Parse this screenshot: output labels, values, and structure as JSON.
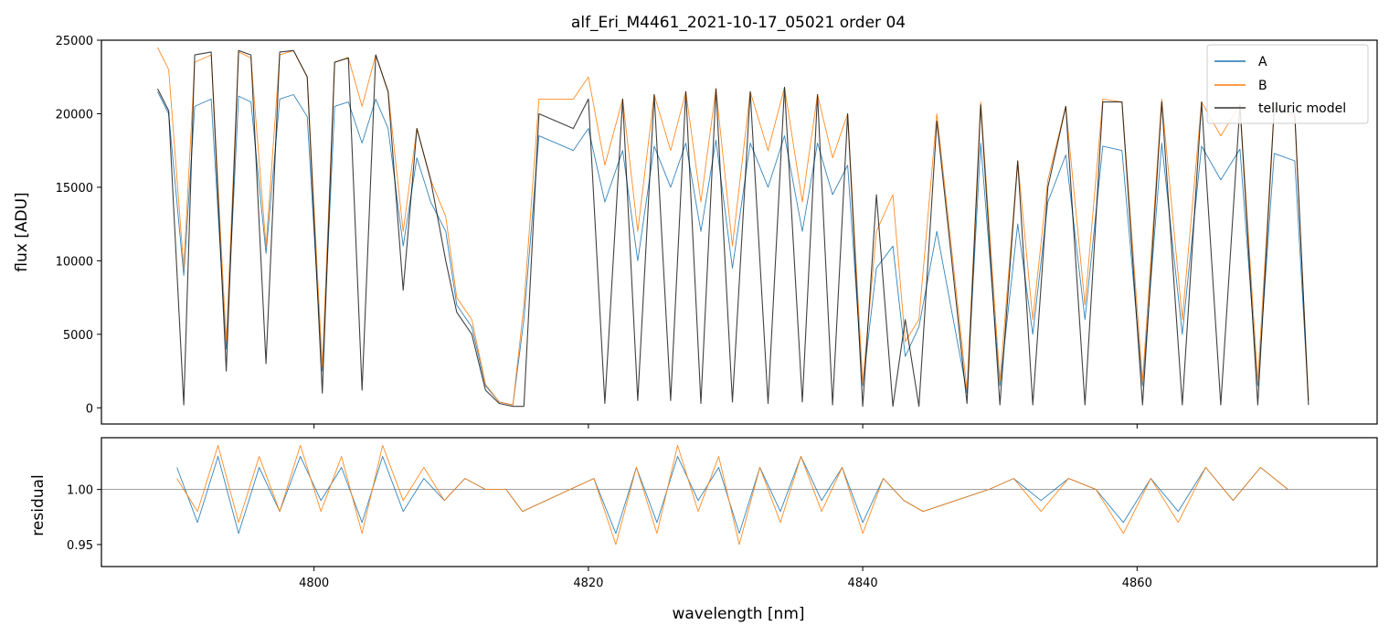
{
  "chart_data": [
    {
      "type": "line",
      "title": "alf_Eri_M4461_2021-10-17_05021  order 04",
      "xlabel": "",
      "ylabel": "flux [ADU]",
      "xlim": [
        4784.5,
        4877.5
      ],
      "ylim": [
        -1100,
        25000
      ],
      "yticks": [
        0,
        5000,
        10000,
        15000,
        20000,
        25000
      ],
      "legend": "top-right",
      "grid": false,
      "colors": {
        "A": "#1f77b4",
        "B": "#ff7f0e",
        "telluric model": "#000000"
      },
      "series": [
        {
          "name": "A",
          "x": [
            4788.6,
            4789.4,
            4790.5,
            4791.3,
            4792.5,
            4793.6,
            4794.5,
            4795.4,
            4796.5,
            4797.5,
            4798.5,
            4799.5,
            4800.6,
            4801.5,
            4802.5,
            4803.5,
            4804.5,
            4805.4,
            4806.5,
            4807.5,
            4808.5,
            4809.6,
            4810.4,
            4811.5,
            4812.5,
            4813.5,
            4814.5,
            4815.3,
            4816.4,
            4818.9,
            4820.0,
            4821.2,
            4822.5,
            4823.6,
            4824.8,
            4826.0,
            4827.1,
            4828.2,
            4829.3,
            4830.5,
            4831.8,
            4833.1,
            4834.3,
            4835.6,
            4836.7,
            4837.8,
            4838.9,
            4840.0,
            4841.0,
            4842.2,
            4843.1,
            4844.1,
            4845.4,
            4847.6,
            4848.6,
            4850.0,
            4851.3,
            4852.4,
            4853.5,
            4854.8,
            4856.2,
            4857.5,
            4858.9,
            4860.4,
            4861.8,
            4863.3,
            4864.7,
            4866.1,
            4867.5,
            4868.8,
            4870.0,
            4871.5,
            4872.5
          ],
          "y": [
            21500,
            20000,
            9000,
            20500,
            21000,
            4000,
            21200,
            20800,
            10500,
            21000,
            21300,
            19800,
            2500,
            20500,
            20800,
            18000,
            21000,
            19000,
            11000,
            17000,
            14000,
            12000,
            7000,
            5500,
            1500,
            400,
            200,
            6000,
            18500,
            17500,
            19000,
            14000,
            17500,
            10000,
            17800,
            15000,
            18000,
            12000,
            18200,
            9500,
            18000,
            15000,
            18500,
            12000,
            18000,
            14500,
            16500,
            1500,
            9500,
            11000,
            3500,
            5500,
            12000,
            1000,
            18000,
            1500,
            12500,
            5000,
            14000,
            17200,
            6000,
            17800,
            17500,
            1500,
            18000,
            5000,
            17800,
            15500,
            17600,
            1500,
            17300,
            16800,
            500
          ]
        },
        {
          "name": "B",
          "x": [
            4788.6,
            4789.4,
            4790.5,
            4791.3,
            4792.5,
            4793.6,
            4794.5,
            4795.4,
            4796.5,
            4797.5,
            4798.5,
            4799.5,
            4800.6,
            4801.5,
            4802.5,
            4803.5,
            4804.5,
            4805.4,
            4806.5,
            4807.5,
            4808.5,
            4809.6,
            4810.4,
            4811.5,
            4812.5,
            4813.5,
            4814.5,
            4815.3,
            4816.4,
            4818.9,
            4820.0,
            4821.2,
            4822.5,
            4823.6,
            4824.8,
            4826.0,
            4827.1,
            4828.2,
            4829.3,
            4830.5,
            4831.8,
            4833.1,
            4834.3,
            4835.6,
            4836.7,
            4837.8,
            4838.9,
            4840.0,
            4841.0,
            4842.2,
            4843.1,
            4844.1,
            4845.4,
            4847.6,
            4848.6,
            4850.0,
            4851.3,
            4852.4,
            4853.5,
            4854.8,
            4856.2,
            4857.5,
            4858.9,
            4860.4,
            4861.8,
            4863.3,
            4864.7,
            4866.1,
            4867.5,
            4868.8,
            4870.0,
            4871.5,
            4872.5
          ],
          "y": [
            24500,
            23000,
            9500,
            23500,
            24000,
            4500,
            24200,
            23800,
            11000,
            24000,
            24300,
            22500,
            2800,
            23500,
            23800,
            20500,
            24000,
            21500,
            12000,
            19000,
            15500,
            13000,
            7500,
            6000,
            1600,
            400,
            200,
            7000,
            21000,
            21000,
            22500,
            16500,
            21000,
            12000,
            21300,
            17500,
            21500,
            14000,
            21700,
            11000,
            21500,
            17500,
            21800,
            14000,
            21300,
            17000,
            20000,
            1700,
            12000,
            14500,
            4500,
            6000,
            20000,
            1200,
            20800,
            1800,
            16800,
            6000,
            15500,
            20500,
            7000,
            21000,
            20800,
            1800,
            21000,
            6000,
            20800,
            18500,
            20600,
            1800,
            20400,
            19800,
            500
          ]
        },
        {
          "name": "telluric model",
          "x": [
            4788.6,
            4789.4,
            4790.5,
            4791.3,
            4792.5,
            4793.6,
            4794.5,
            4795.4,
            4796.5,
            4797.5,
            4798.5,
            4799.5,
            4800.6,
            4801.5,
            4802.5,
            4803.5,
            4804.5,
            4805.4,
            4806.5,
            4807.5,
            4808.5,
            4809.6,
            4810.4,
            4811.5,
            4812.5,
            4813.5,
            4814.5,
            4815.3,
            4816.4,
            4818.9,
            4820.0,
            4821.2,
            4822.5,
            4823.6,
            4824.8,
            4826.0,
            4827.1,
            4828.2,
            4829.3,
            4830.5,
            4831.8,
            4833.1,
            4834.3,
            4835.6,
            4836.7,
            4837.8,
            4838.9,
            4840.0,
            4841.0,
            4842.2,
            4843.1,
            4844.1,
            4845.4,
            4847.6,
            4848.6,
            4850.0,
            4851.3,
            4852.4,
            4853.5,
            4854.8,
            4856.2,
            4857.5,
            4858.9,
            4860.4,
            4861.8,
            4863.3,
            4864.7,
            4866.1,
            4867.5,
            4868.8,
            4870.0,
            4871.5,
            4872.5
          ],
          "y": [
            21700,
            20200,
            200,
            24000,
            24200,
            2500,
            24300,
            24000,
            3000,
            24200,
            24300,
            22500,
            1000,
            23500,
            23800,
            1200,
            24000,
            21500,
            8000,
            19000,
            15500,
            10000,
            6500,
            5000,
            1200,
            300,
            100,
            100,
            20000,
            19000,
            21000,
            300,
            21000,
            500,
            21300,
            500,
            21500,
            300,
            21700,
            400,
            21500,
            300,
            21800,
            400,
            21300,
            200,
            20000,
            100,
            14500,
            100,
            6000,
            100,
            19500,
            300,
            20600,
            200,
            16800,
            200,
            15000,
            20500,
            200,
            20800,
            20800,
            200,
            20800,
            200,
            20800,
            200,
            20600,
            200,
            20400,
            20000,
            200
          ]
        }
      ]
    },
    {
      "type": "line",
      "title": "",
      "xlabel": "wavelength [nm]",
      "ylabel": "residual",
      "xlim": [
        4784.5,
        4877.5
      ],
      "ylim": [
        0.93,
        1.047
      ],
      "xticks": [
        4800,
        4820,
        4840,
        4860
      ],
      "yticks": [
        0.95,
        1.0
      ],
      "reference_line": 1.0,
      "grid": false,
      "series": [
        {
          "name": "A",
          "x": [
            4790.0,
            4791.5,
            4793.0,
            4794.5,
            4796.0,
            4797.5,
            4799.0,
            4800.5,
            4802.0,
            4803.5,
            4805.0,
            4806.5,
            4808.0,
            4809.5,
            4811.0,
            4812.5,
            4814.0,
            4815.2,
            4820.4,
            4822.0,
            4823.5,
            4825.0,
            4826.5,
            4828.0,
            4829.5,
            4831.0,
            4832.5,
            4834.0,
            4835.5,
            4837.0,
            4838.5,
            4840.0,
            4841.5,
            4843.0,
            4844.4,
            4849.2,
            4851.0,
            4853.0,
            4855.0,
            4857.0,
            4859.0,
            4861.0,
            4863.0,
            4865.0,
            4867.0,
            4869.0,
            4871.0
          ],
          "y": [
            1.02,
            0.97,
            1.03,
            0.96,
            1.02,
            0.98,
            1.03,
            0.99,
            1.02,
            0.97,
            1.03,
            0.98,
            1.01,
            0.99,
            1.01,
            1.0,
            1.0,
            0.98,
            1.01,
            0.96,
            1.02,
            0.97,
            1.03,
            0.99,
            1.02,
            0.96,
            1.02,
            0.98,
            1.03,
            0.99,
            1.02,
            0.97,
            1.01,
            0.99,
            0.98,
            1.0,
            1.01,
            0.99,
            1.01,
            1.0,
            0.97,
            1.01,
            0.98,
            1.02,
            0.99,
            1.02,
            1.0
          ]
        },
        {
          "name": "B",
          "x": [
            4790.0,
            4791.5,
            4793.0,
            4794.5,
            4796.0,
            4797.5,
            4799.0,
            4800.5,
            4802.0,
            4803.5,
            4805.0,
            4806.5,
            4808.0,
            4809.5,
            4811.0,
            4812.5,
            4814.0,
            4815.2,
            4820.4,
            4822.0,
            4823.5,
            4825.0,
            4826.5,
            4828.0,
            4829.5,
            4831.0,
            4832.5,
            4834.0,
            4835.5,
            4837.0,
            4838.5,
            4840.0,
            4841.5,
            4843.0,
            4844.4,
            4849.2,
            4851.0,
            4853.0,
            4855.0,
            4857.0,
            4859.0,
            4861.0,
            4863.0,
            4865.0,
            4867.0,
            4869.0,
            4871.0
          ],
          "y": [
            1.01,
            0.98,
            1.04,
            0.97,
            1.03,
            0.98,
            1.04,
            0.98,
            1.03,
            0.96,
            1.04,
            0.99,
            1.02,
            0.99,
            1.01,
            1.0,
            1.0,
            0.98,
            1.01,
            0.95,
            1.02,
            0.96,
            1.04,
            0.98,
            1.03,
            0.95,
            1.02,
            0.97,
            1.03,
            0.98,
            1.02,
            0.96,
            1.01,
            0.99,
            0.98,
            1.0,
            1.01,
            0.98,
            1.01,
            1.0,
            0.96,
            1.01,
            0.97,
            1.02,
            0.99,
            1.02,
            1.0
          ]
        }
      ]
    }
  ]
}
